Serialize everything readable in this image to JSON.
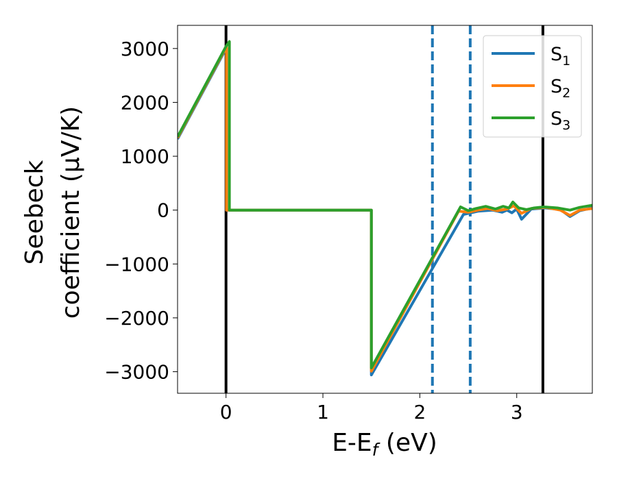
{
  "chart_data": {
    "type": "line",
    "title": "",
    "xlabel": {
      "base": "E-E",
      "sub": "f",
      "rest": " (eV)"
    },
    "ylabel": {
      "line1": "Seebeck",
      "line2": "coefficient  (μV/K)"
    },
    "xlim": [
      -0.5,
      3.78
    ],
    "ylim": [
      -3400,
      3430
    ],
    "xticks": [
      0,
      1,
      2,
      3
    ],
    "xtick_labels": [
      "0",
      "1",
      "2",
      "3"
    ],
    "yticks": [
      -3000,
      -2000,
      -1000,
      0,
      1000,
      2000,
      3000
    ],
    "ytick_labels": [
      "−3000",
      "−2000",
      "−1000",
      "0",
      "1000",
      "2000",
      "3000"
    ],
    "grid": false,
    "legend_position": "top-right",
    "series": [
      {
        "name": "S",
        "sub": "1",
        "color": "#1f77b4",
        "points": [
          [
            -0.5,
            1320
          ],
          [
            0.0,
            3000
          ],
          [
            0.005,
            3000
          ],
          [
            0.005,
            0
          ],
          [
            1.5,
            0
          ],
          [
            1.5,
            -3060
          ],
          [
            2.45,
            -80
          ],
          [
            2.6,
            -20
          ],
          [
            2.75,
            0
          ],
          [
            2.85,
            -40
          ],
          [
            2.9,
            0
          ],
          [
            2.95,
            -50
          ],
          [
            3.0,
            20
          ],
          [
            3.05,
            -170
          ],
          [
            3.15,
            20
          ],
          [
            3.3,
            40
          ],
          [
            3.45,
            10
          ],
          [
            3.55,
            -120
          ],
          [
            3.65,
            -10
          ],
          [
            3.78,
            40
          ]
        ]
      },
      {
        "name": "S",
        "sub": "2",
        "color": "#ff7f0e",
        "points": [
          [
            -0.5,
            1340
          ],
          [
            0.0,
            3020
          ],
          [
            0.005,
            3020
          ],
          [
            0.005,
            0
          ],
          [
            1.5,
            0
          ],
          [
            1.5,
            -2990
          ],
          [
            2.4,
            -20
          ],
          [
            2.5,
            -40
          ],
          [
            2.6,
            0
          ],
          [
            2.7,
            30
          ],
          [
            2.8,
            -10
          ],
          [
            2.9,
            20
          ],
          [
            2.97,
            80
          ],
          [
            3.05,
            -60
          ],
          [
            3.15,
            30
          ],
          [
            3.3,
            50
          ],
          [
            3.45,
            0
          ],
          [
            3.55,
            -100
          ],
          [
            3.65,
            0
          ],
          [
            3.78,
            30
          ]
        ]
      },
      {
        "name": "S",
        "sub": "3",
        "color": "#2ca02c",
        "points": [
          [
            -0.5,
            1360
          ],
          [
            0.0,
            3040
          ],
          [
            0.035,
            3130
          ],
          [
            0.035,
            0
          ],
          [
            1.5,
            0
          ],
          [
            1.5,
            -2930
          ],
          [
            2.42,
            60
          ],
          [
            2.5,
            -10
          ],
          [
            2.58,
            30
          ],
          [
            2.68,
            70
          ],
          [
            2.78,
            20
          ],
          [
            2.86,
            70
          ],
          [
            2.92,
            40
          ],
          [
            2.96,
            150
          ],
          [
            3.02,
            40
          ],
          [
            3.1,
            10
          ],
          [
            3.18,
            40
          ],
          [
            3.28,
            60
          ],
          [
            3.42,
            40
          ],
          [
            3.55,
            0
          ],
          [
            3.65,
            50
          ],
          [
            3.78,
            90
          ]
        ]
      }
    ],
    "vertical_lines": [
      {
        "x": 0.0,
        "style": "solid",
        "color": "#000000"
      },
      {
        "x": 2.13,
        "style": "dashed",
        "color": "#1f77b4"
      },
      {
        "x": 2.52,
        "style": "dashed",
        "color": "#1f77b4"
      },
      {
        "x": 3.27,
        "style": "solid",
        "color": "#000000"
      }
    ]
  }
}
